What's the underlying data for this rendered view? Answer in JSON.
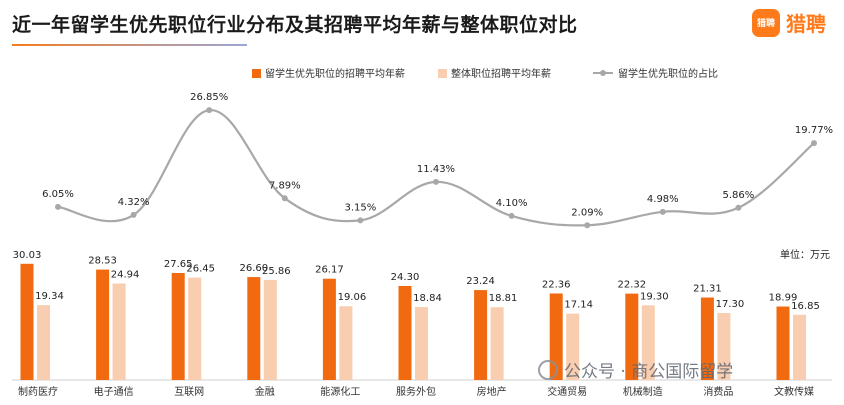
{
  "header": {
    "title": "近一年留学生优先职位行业分布及其招聘平均年薪与整体职位对比",
    "logo_badge": "猎聘",
    "logo_text": "猎聘"
  },
  "watermark": {
    "text": "公众号 · 商公国际留学"
  },
  "colors": {
    "series1": "#f26a10",
    "series2": "#f8cdb0",
    "line": "#a8a8a8"
  },
  "chart_data": {
    "type": "bar",
    "title": "近一年留学生优先职位行业分布及其招聘平均年薪与整体职位对比",
    "unit": "单位：万元",
    "categories": [
      "制药医疗",
      "电子通信",
      "互联网",
      "金融",
      "能源化工",
      "服务外包",
      "房地产",
      "交通贸易",
      "机械制造",
      "消费品",
      "文教传媒"
    ],
    "series": [
      {
        "name": "留学生优先职位的招聘平均年薪",
        "type": "bar",
        "values": [
          30.03,
          28.53,
          27.65,
          26.6,
          26.17,
          24.3,
          23.24,
          22.36,
          22.32,
          21.31,
          18.99
        ]
      },
      {
        "name": "整体职位招聘平均年薪",
        "type": "bar",
        "values": [
          19.34,
          24.94,
          26.45,
          25.86,
          19.06,
          18.84,
          18.81,
          17.14,
          19.3,
          17.3,
          16.85
        ]
      },
      {
        "name": "留学生优先职位的占比",
        "type": "line",
        "values": [
          6.05,
          4.32,
          26.85,
          7.89,
          3.15,
          11.43,
          4.1,
          2.09,
          4.98,
          5.86,
          19.77
        ],
        "labels": [
          "6.05%",
          "4.32%",
          "26.85%",
          "7.89%",
          "3.15%",
          "11.43%",
          "4.10%",
          "2.09%",
          "4.98%",
          "5.86%",
          "19.77%"
        ]
      }
    ],
    "legend_position": "top-right",
    "grid": false
  }
}
